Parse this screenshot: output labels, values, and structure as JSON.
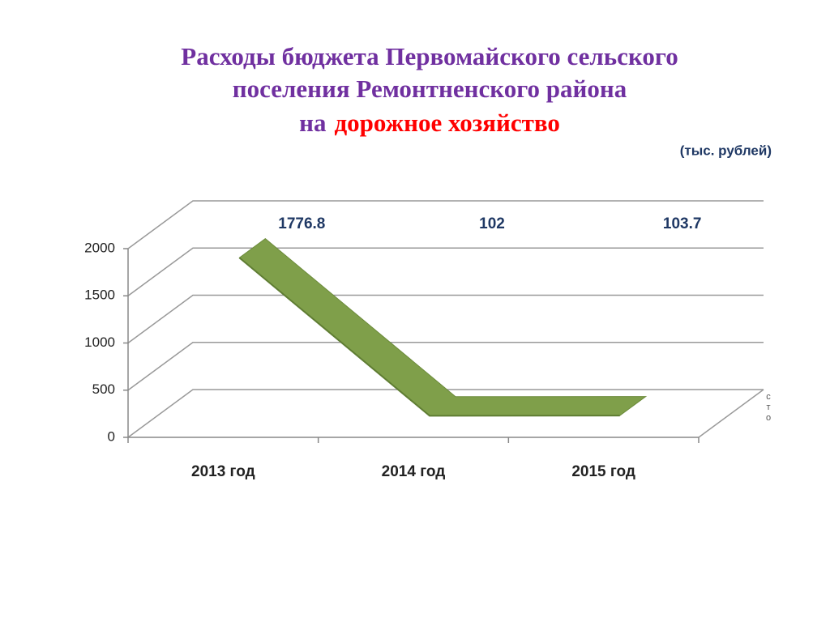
{
  "chart_data": {
    "type": "line3d",
    "title_lines": [
      "Расходы бюджета Первомайского сельского",
      "поселения Ремонтненского района",
      "на"
    ],
    "title_highlight": "дорожное хозяйство",
    "title_color": "#7030a0",
    "highlight_color": "#ff0000",
    "subtitle": "(тыс. рублей)",
    "categories": [
      "2013 год",
      "2014 год",
      "2015 год"
    ],
    "series": [
      {
        "name": "сто",
        "color": "#7f9f4a",
        "values": [
          1776.8,
          102,
          103.7
        ]
      }
    ],
    "ylim": [
      0,
      2000
    ],
    "yticks": [
      0,
      500,
      1000,
      1500,
      2000
    ],
    "grid": true
  }
}
